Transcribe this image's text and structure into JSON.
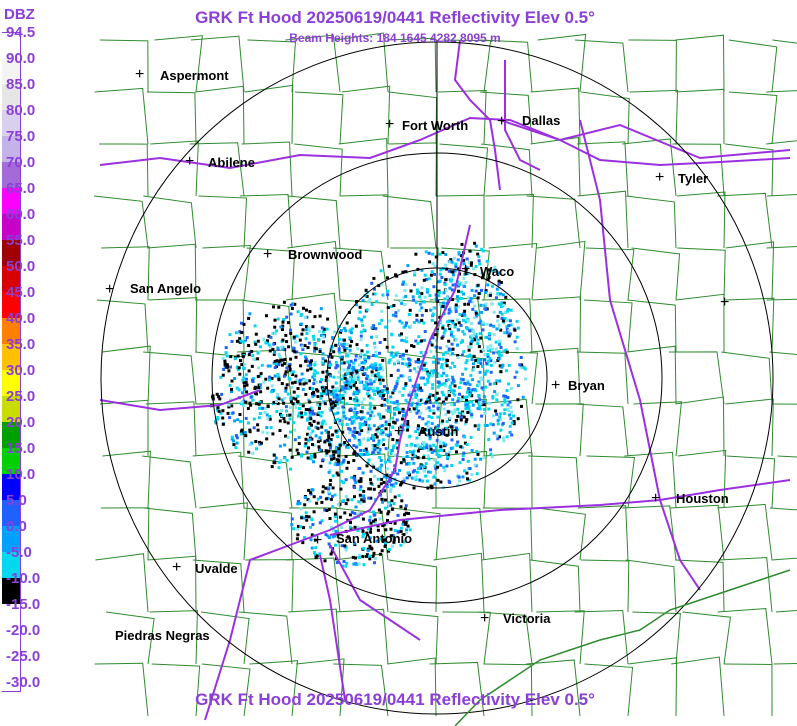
{
  "title": "GRK Ft Hood 20250619/0441 Reflectivity Elev 0.5°",
  "subtitle": "Beam Heights: 184 1645 4282 8095 m",
  "title_bottom": "GRK Ft Hood 20250619/0441 Reflectivity Elev 0.5°",
  "legend": {
    "unit": "DBZ",
    "labels": [
      "94.5",
      "90.0",
      "85.0",
      "80.0",
      "75.0",
      "70.0",
      "65.0",
      "60.0",
      "55.0",
      "50.0",
      "45.0",
      "40.0",
      "35.0",
      "30.0",
      "25.0",
      "20.0",
      "15.0",
      "10.0",
      "5.0",
      "0.0",
      "-5.0",
      "-10.0",
      "-15.0",
      "-20.0",
      "-25.0",
      "-30.0"
    ],
    "colors": [
      "#ffffff",
      "#f4f4f4",
      "#e6e6e6",
      "#d8d0ee",
      "#c4b3e8",
      "#a46ad8",
      "#ff00ff",
      "#c800c8",
      "#a00000",
      "#d80000",
      "#ff0000",
      "#ff8000",
      "#ffc000",
      "#ffff00",
      "#c8dc00",
      "#00a000",
      "#00d000",
      "#0000ff",
      "#2060ff",
      "#00a0ff",
      "#00d8f0",
      "#000000",
      "#ffffff",
      "#ffffff",
      "#ffffff",
      "#ffffff"
    ]
  },
  "cities": [
    {
      "name": "Aspermont"
    },
    {
      "name": "Fort Worth"
    },
    {
      "name": "Dallas"
    },
    {
      "name": "Abilene"
    },
    {
      "name": "Tyler"
    },
    {
      "name": "Brownwood"
    },
    {
      "name": "Waco"
    },
    {
      "name": "San Angelo"
    },
    {
      "name": "Bryan"
    },
    {
      "name": "Austin"
    },
    {
      "name": "Houston"
    },
    {
      "name": "San Antonio"
    },
    {
      "name": "Uvalde"
    },
    {
      "name": "Victoria"
    },
    {
      "name": "Piedras Negras"
    },
    {
      "name": ""
    }
  ],
  "colors": {
    "title": "#8a3fd6",
    "county_lines": "#2e8b2e",
    "highways": "#9b30e0",
    "rings": "#000000"
  }
}
